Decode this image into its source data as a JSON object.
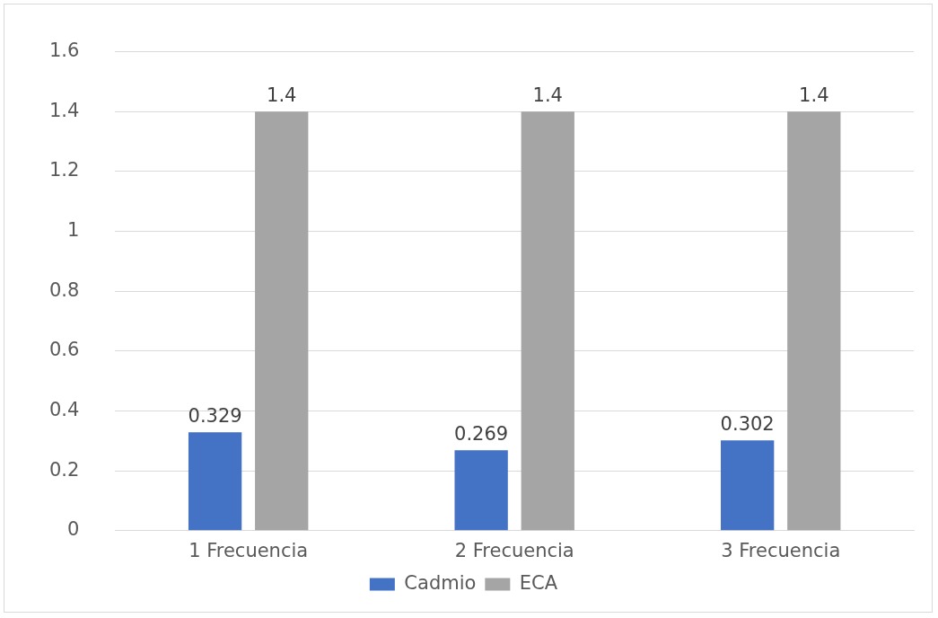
{
  "chart_data": {
    "type": "bar",
    "categories": [
      "1 Frecuencia",
      "2 Frecuencia",
      "3 Frecuencia"
    ],
    "series": [
      {
        "name": "Cadmio",
        "color": "#4472c4",
        "values": [
          0.329,
          0.269,
          0.302
        ]
      },
      {
        "name": "ECA",
        "color": "#a5a5a5",
        "values": [
          1.4,
          1.4,
          1.4
        ]
      }
    ],
    "ylim": [
      0,
      1.6
    ],
    "yticks": [
      0,
      0.2,
      0.4,
      0.6,
      0.8,
      1,
      1.2,
      1.4,
      1.6
    ],
    "grid": "y",
    "legend": "bottom",
    "data_labels": true
  }
}
